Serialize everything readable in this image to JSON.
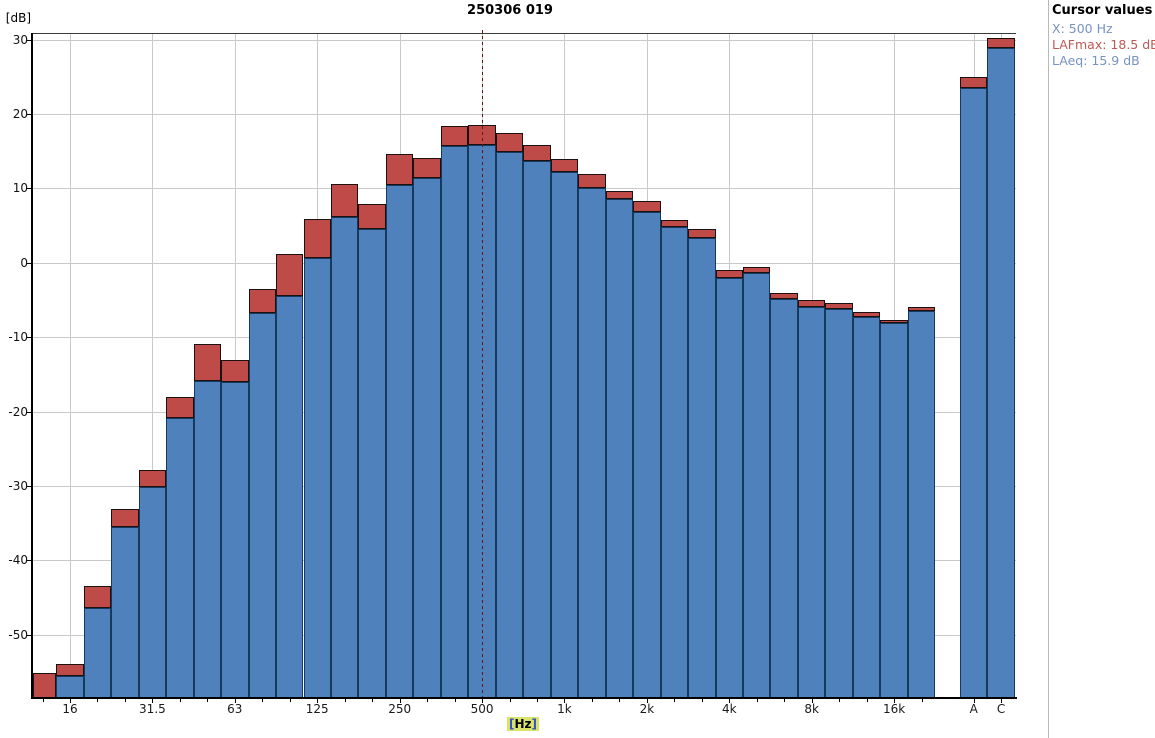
{
  "title": "250306 019",
  "cursor_panel": {
    "header": "Cursor values",
    "x_line": "X: 500 Hz",
    "lafmax_line": "LAFmax: 18.5 dB",
    "laeq_line": "LAeq: 15.9 dB"
  },
  "axis": {
    "ylabel_bracketed": "[dB]",
    "xlabel_open": "[",
    "xlabel_text": "Hz",
    "xlabel_close": "]"
  },
  "colors": {
    "laeq_bar": "#4F81BD",
    "lafmax_bar": "#BE4B48",
    "grid": "#c9c9c9",
    "cursor_line": "#6b1313",
    "panel_text_blue": "#7793c1",
    "panel_text_red": "#be5855",
    "xlabel_highlight": "#d9e36a"
  },
  "chart_data": {
    "type": "bar",
    "title": "250306 019",
    "xlabel": "[Hz]",
    "ylabel": "[dB]",
    "grid": true,
    "legend_position": "none",
    "ylim": [
      -58.5,
      30.9
    ],
    "yticks": [
      30,
      20,
      10,
      0,
      -10,
      -20,
      -30,
      -40,
      -50
    ],
    "categories": [
      "12.5",
      "16",
      "20",
      "25",
      "31.5",
      "40",
      "50",
      "63",
      "80",
      "100",
      "125",
      "160",
      "200",
      "250",
      "315",
      "400",
      "500",
      "630",
      "800",
      "1k",
      "1.25k",
      "1.6k",
      "2k",
      "2.5k",
      "3.15k",
      "4k",
      "5k",
      "6.3k",
      "8k",
      "10k",
      "12.5k",
      "16k",
      "20k",
      "A",
      "C"
    ],
    "x_tick_indices": [
      1,
      4,
      7,
      10,
      13,
      16,
      19,
      22,
      25,
      28,
      31,
      33,
      34
    ],
    "x_tick_labels": [
      "16",
      "31.5",
      "63",
      "125",
      "250",
      "500",
      "1k",
      "2k",
      "4k",
      "8k",
      "16k",
      "A",
      "C"
    ],
    "series": [
      {
        "name": "LAFmax",
        "color": "#BE4B48",
        "values": [
          -55.2,
          -53.9,
          -43.4,
          -33.1,
          -27.8,
          -18.0,
          -10.9,
          -13.0,
          -3.5,
          1.2,
          5.9,
          10.6,
          7.9,
          14.7,
          14.1,
          18.4,
          18.5,
          17.4,
          15.9,
          14.0,
          11.9,
          9.7,
          8.3,
          5.8,
          4.5,
          -0.9,
          -0.5,
          -4.1,
          -5.0,
          -5.4,
          -6.6,
          -7.7,
          -6.0,
          25.0,
          30.2
        ]
      },
      {
        "name": "LAeq",
        "color": "#4F81BD",
        "values": [
          -58.5,
          -55.6,
          -46.4,
          -35.5,
          -30.2,
          -20.8,
          -15.9,
          -16.0,
          -6.7,
          -4.4,
          0.6,
          6.2,
          4.5,
          10.4,
          11.4,
          15.7,
          15.9,
          14.9,
          13.7,
          12.2,
          10.1,
          8.6,
          6.9,
          4.8,
          3.4,
          -2.0,
          -1.3,
          -4.8,
          -6.0,
          -6.2,
          -7.3,
          -8.1,
          -6.5,
          23.5,
          28.9
        ]
      }
    ],
    "cursor": {
      "category": "500",
      "lafmax_db": 18.5,
      "laeq_db": 15.9
    }
  }
}
